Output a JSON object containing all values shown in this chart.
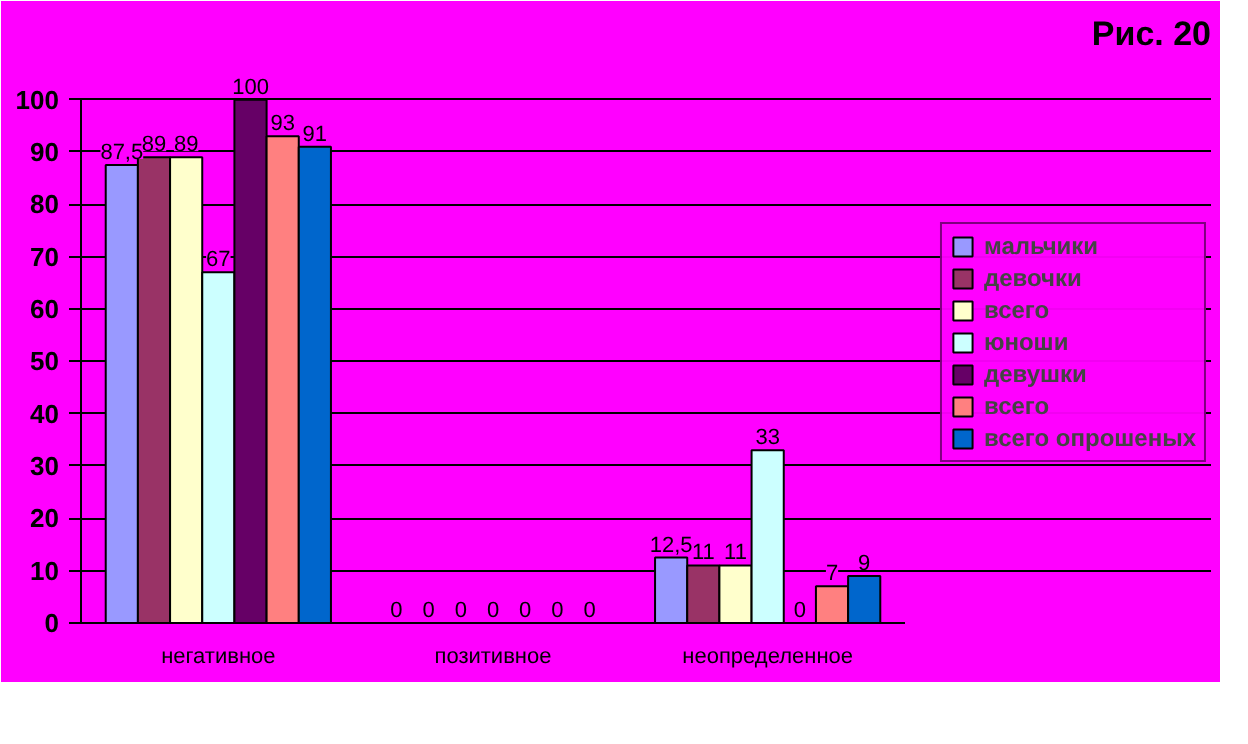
{
  "chart_data": {
    "type": "bar",
    "title": "Рис. 20",
    "categories": [
      "негативное",
      "позитивное",
      "неопределенное"
    ],
    "series": [
      {
        "name": "мальчики",
        "color": "#9999ff",
        "values": [
          87.5,
          0,
          12.5
        ],
        "value_labels": [
          "87,5",
          "0",
          "12,5"
        ]
      },
      {
        "name": "девочки",
        "color": "#993366",
        "values": [
          89,
          0,
          11
        ],
        "value_labels": [
          "89",
          "0",
          "11"
        ]
      },
      {
        "name": "всего",
        "color": "#ffffcc",
        "values": [
          89,
          0,
          11
        ],
        "value_labels": [
          "89",
          "0",
          "11"
        ]
      },
      {
        "name": "юноши",
        "color": "#ccffff",
        "values": [
          67,
          0,
          33
        ],
        "value_labels": [
          "67",
          "0",
          "33"
        ]
      },
      {
        "name": "девушки",
        "color": "#660066",
        "values": [
          100,
          0,
          0
        ],
        "value_labels": [
          "100",
          "0",
          "0"
        ]
      },
      {
        "name": "всего",
        "color": "#ff8080",
        "values": [
          93,
          0,
          7
        ],
        "value_labels": [
          "93",
          "0",
          "7"
        ]
      },
      {
        "name": "всего опрошеных",
        "color": "#0066cc",
        "values": [
          91,
          0,
          9
        ],
        "value_labels": [
          "91",
          "0",
          "9"
        ]
      }
    ],
    "ylim": [
      0,
      100
    ],
    "yticks": [
      0,
      10,
      20,
      30,
      40,
      50,
      60,
      70,
      80,
      90,
      100
    ],
    "grid": "y",
    "legend": "right"
  }
}
